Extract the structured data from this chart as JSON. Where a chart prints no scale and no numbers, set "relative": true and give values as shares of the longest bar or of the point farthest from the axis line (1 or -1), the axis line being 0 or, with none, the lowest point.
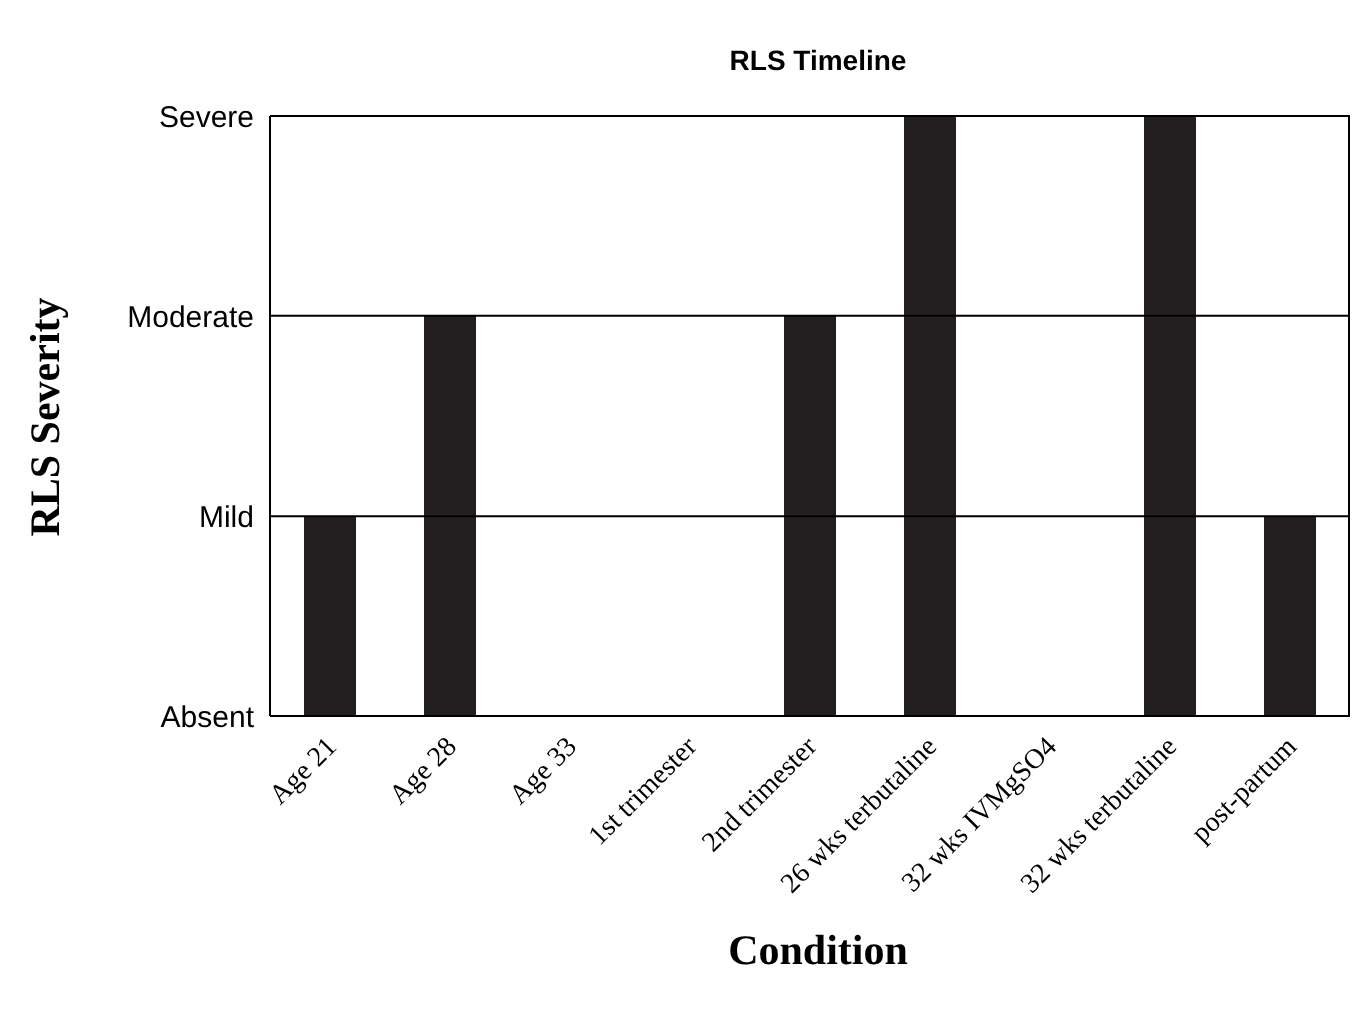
{
  "chart_data": {
    "type": "bar",
    "title": "RLS Timeline",
    "xlabel": "Condition",
    "ylabel": "RLS Severity",
    "categories": [
      "Age 21",
      "Age 28",
      "Age 33",
      "1st trimester",
      "2nd trimester",
      "26 wks terbutaline",
      "32 wks IVMgSO4",
      "32 wks terbutaline",
      "post-partum"
    ],
    "values": [
      0.333,
      0.667,
      0,
      0,
      0.667,
      1,
      0,
      1,
      0.333
    ],
    "color": "#231f20",
    "relative": true,
    "y_categories": [
      "Severe",
      "Moderate",
      "Mild",
      "Absent"
    ],
    "ref_lines": [
      {
        "axis": "y",
        "value": 0.333,
        "color": "#000000"
      },
      {
        "axis": "y",
        "value": 0.667,
        "color": "#000000"
      }
    ],
    "legend": false
  }
}
